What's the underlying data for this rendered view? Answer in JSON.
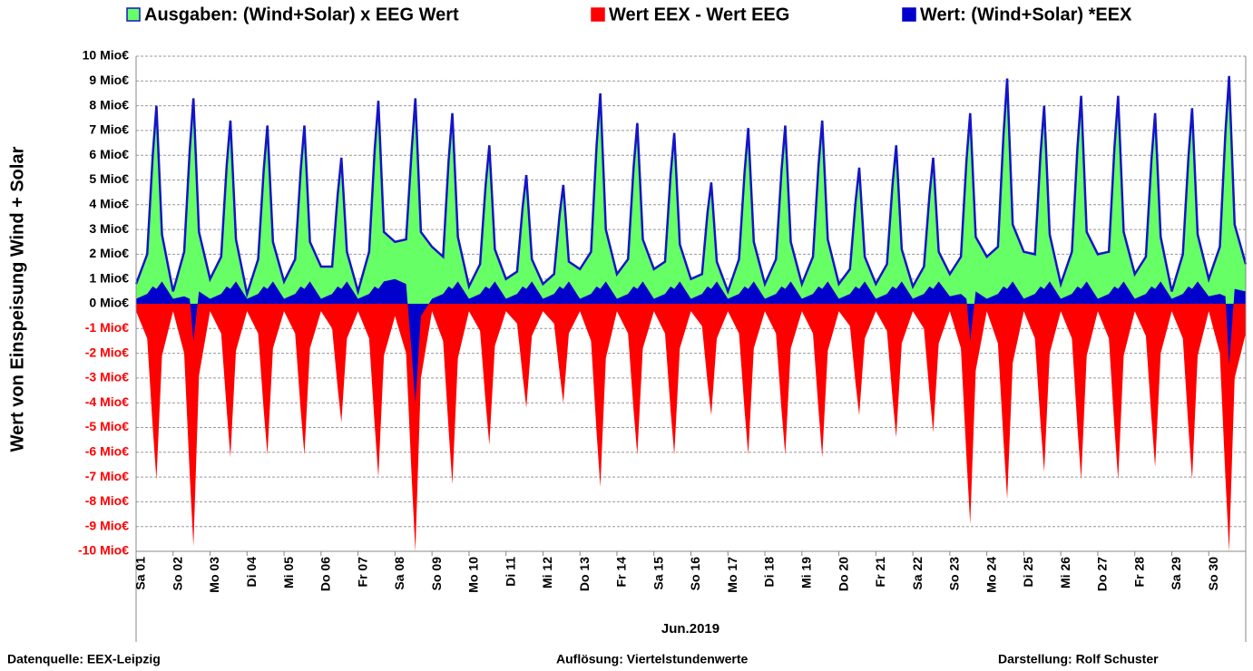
{
  "chart_data": {
    "type": "area",
    "y_label": "Wert von Einspeisung Wind + Solar",
    "x_label": "Jun.2019",
    "notes": [
      "Datenquelle:  EEX-Leipzig",
      "Auflösung: Viertelstundenwerte",
      "Darstellung: Rolf Schuster"
    ],
    "grid": true,
    "outline_color": "#1414c8",
    "negative_tick_color": "#ff0000",
    "xlim": [
      0,
      30
    ],
    "ylim": [
      -10,
      10
    ],
    "yticks": [
      {
        "value": 10,
        "label": "10 Mio€"
      },
      {
        "value": 9,
        "label": "9 Mio€"
      },
      {
        "value": 8,
        "label": "8 Mio€"
      },
      {
        "value": 7,
        "label": "7 Mio€"
      },
      {
        "value": 6,
        "label": "6 Mio€"
      },
      {
        "value": 5,
        "label": "5 Mio€"
      },
      {
        "value": 4,
        "label": "4 Mio€"
      },
      {
        "value": 3,
        "label": "3 Mio€"
      },
      {
        "value": 2,
        "label": "2 Mio€"
      },
      {
        "value": 1,
        "label": "1 Mio€"
      },
      {
        "value": 0,
        "label": "0 Mio€"
      },
      {
        "value": -1,
        "label": "-1 Mio€"
      },
      {
        "value": -2,
        "label": "-2 Mio€"
      },
      {
        "value": -3,
        "label": "-3 Mio€"
      },
      {
        "value": -4,
        "label": "-4 Mio€"
      },
      {
        "value": -5,
        "label": "-5 Mio€"
      },
      {
        "value": -6,
        "label": "-6 Mio€"
      },
      {
        "value": -7,
        "label": "-7 Mio€"
      },
      {
        "value": -8,
        "label": "-8 Mio€"
      },
      {
        "value": -9,
        "label": "-9 Mio€"
      },
      {
        "value": -10,
        "label": "-10 Mio€"
      }
    ],
    "xticks": [
      {
        "value": 0,
        "label": "Sa 01"
      },
      {
        "value": 1,
        "label": "So 02"
      },
      {
        "value": 2,
        "label": "Mo 03"
      },
      {
        "value": 3,
        "label": "Di 04"
      },
      {
        "value": 4,
        "label": "Mi 05"
      },
      {
        "value": 5,
        "label": "Do 06"
      },
      {
        "value": 6,
        "label": "Fr 07"
      },
      {
        "value": 7,
        "label": "Sa 08"
      },
      {
        "value": 8,
        "label": "So 09"
      },
      {
        "value": 9,
        "label": "Mo 10"
      },
      {
        "value": 10,
        "label": "Di 11"
      },
      {
        "value": 11,
        "label": "Mi 12"
      },
      {
        "value": 12,
        "label": "Do 13"
      },
      {
        "value": 13,
        "label": "Fr 14"
      },
      {
        "value": 14,
        "label": "Sa 15"
      },
      {
        "value": 15,
        "label": "So 16"
      },
      {
        "value": 16,
        "label": "Mo 17"
      },
      {
        "value": 17,
        "label": "Di 18"
      },
      {
        "value": 18,
        "label": "Mi 19"
      },
      {
        "value": 19,
        "label": "Do 20"
      },
      {
        "value": 20,
        "label": "Fr 21"
      },
      {
        "value": 21,
        "label": "Sa 22"
      },
      {
        "value": 22,
        "label": "So 23"
      },
      {
        "value": 23,
        "label": "Mo 24"
      },
      {
        "value": 24,
        "label": "Di 25"
      },
      {
        "value": 25,
        "label": "Mi 26"
      },
      {
        "value": 26,
        "label": "Do 27"
      },
      {
        "value": 27,
        "label": "Fr 28"
      },
      {
        "value": 28,
        "label": "Sa 29"
      },
      {
        "value": 29,
        "label": "So 30"
      }
    ],
    "x": [
      0,
      0.3,
      0.45,
      0.55,
      0.7,
      1,
      1.3,
      1.45,
      1.55,
      1.7,
      2,
      2.3,
      2.45,
      2.55,
      2.7,
      3,
      3.3,
      3.45,
      3.55,
      3.7,
      4,
      4.3,
      4.45,
      4.55,
      4.7,
      5,
      5.3,
      5.45,
      5.55,
      5.7,
      6,
      6.3,
      6.45,
      6.55,
      6.7,
      7,
      7.3,
      7.45,
      7.55,
      7.7,
      8,
      8.3,
      8.45,
      8.55,
      8.7,
      9,
      9.3,
      9.45,
      9.55,
      9.7,
      10,
      10.3,
      10.45,
      10.55,
      10.7,
      11,
      11.3,
      11.45,
      11.55,
      11.7,
      12,
      12.3,
      12.45,
      12.55,
      12.7,
      13,
      13.3,
      13.45,
      13.55,
      13.7,
      14,
      14.3,
      14.45,
      14.55,
      14.7,
      15,
      15.3,
      15.45,
      15.55,
      15.7,
      16,
      16.3,
      16.45,
      16.55,
      16.7,
      17,
      17.3,
      17.45,
      17.55,
      17.7,
      18,
      18.3,
      18.45,
      18.55,
      18.7,
      19,
      19.3,
      19.45,
      19.55,
      19.7,
      20,
      20.3,
      20.45,
      20.55,
      20.7,
      21,
      21.3,
      21.45,
      21.55,
      21.7,
      22,
      22.3,
      22.45,
      22.55,
      22.7,
      23,
      23.3,
      23.45,
      23.55,
      23.7,
      24,
      24.3,
      24.45,
      24.55,
      24.7,
      25,
      25.3,
      25.45,
      25.55,
      25.7,
      26,
      26.3,
      26.45,
      26.55,
      26.7,
      27,
      27.3,
      27.45,
      27.55,
      27.7,
      28,
      28.3,
      28.45,
      28.55,
      28.7,
      29,
      29.3,
      29.45,
      29.55,
      29.7,
      30
    ],
    "series": [
      {
        "name": "Ausgaben: (Wind+Solar) x EEG Wert",
        "color": "#66ff66",
        "values": [
          0.8,
          2.0,
          6.0,
          8.0,
          2.8,
          0.5,
          2.1,
          6.2,
          8.3,
          2.9,
          1.0,
          1.9,
          5.6,
          7.4,
          2.6,
          0.4,
          1.8,
          5.4,
          7.2,
          2.5,
          0.9,
          1.8,
          5.4,
          7.2,
          2.5,
          1.5,
          1.5,
          4.4,
          5.9,
          2.1,
          0.5,
          2.1,
          6.2,
          8.2,
          2.9,
          2.5,
          2.6,
          6.2,
          8.3,
          2.9,
          2.3,
          1.9,
          5.8,
          7.7,
          2.7,
          0.7,
          1.6,
          4.8,
          6.4,
          2.2,
          1.0,
          1.3,
          3.9,
          5.2,
          1.8,
          0.8,
          1.2,
          3.6,
          4.8,
          1.7,
          1.4,
          2.1,
          6.4,
          8.5,
          3.0,
          1.2,
          1.8,
          5.5,
          7.3,
          2.6,
          1.4,
          1.7,
          5.2,
          6.9,
          2.4,
          1.0,
          1.2,
          3.7,
          4.9,
          1.7,
          0.5,
          1.8,
          5.3,
          7.1,
          2.5,
          0.8,
          1.8,
          5.4,
          7.2,
          2.5,
          0.8,
          1.9,
          5.6,
          7.4,
          2.6,
          0.8,
          1.4,
          4.1,
          5.5,
          1.9,
          0.8,
          1.6,
          4.8,
          6.4,
          2.2,
          0.7,
          1.5,
          4.4,
          5.9,
          2.1,
          1.2,
          1.9,
          5.8,
          7.7,
          2.7,
          1.9,
          2.3,
          6.8,
          9.1,
          3.2,
          2.1,
          2.0,
          6.0,
          8.0,
          2.8,
          0.8,
          2.1,
          6.3,
          8.4,
          2.9,
          2.0,
          2.1,
          6.3,
          8.4,
          2.9,
          1.2,
          1.9,
          5.8,
          7.7,
          2.7,
          0.5,
          2.0,
          5.9,
          7.9,
          2.8,
          1.0,
          2.3,
          6.9,
          9.2,
          3.2,
          1.6
        ]
      },
      {
        "name": "Wert EEX - Wert EEG",
        "color": "#ff0000",
        "values": [
          -0.3,
          -1.4,
          -5.0,
          -7.1,
          -2.1,
          -0.3,
          -2.0,
          -6.9,
          -9.8,
          -2.9,
          -0.3,
          -1.2,
          -4.3,
          -6.2,
          -1.9,
          -0.3,
          -1.2,
          -4.3,
          -6.1,
          -1.8,
          -0.3,
          -1.2,
          -4.3,
          -6.1,
          -1.8,
          -0.3,
          -1.0,
          -3.4,
          -4.8,
          -1.4,
          -0.3,
          -1.4,
          -4.9,
          -7.0,
          -2.1,
          -0.5,
          -2.0,
          -7.0,
          -10,
          -3.0,
          -0.3,
          -1.5,
          -5.1,
          -7.3,
          -2.2,
          -0.3,
          -1.1,
          -4.0,
          -5.7,
          -1.7,
          -0.3,
          -0.8,
          -2.9,
          -4.2,
          -1.3,
          -0.3,
          -0.8,
          -2.8,
          -4.0,
          -1.2,
          -0.3,
          -1.5,
          -5.2,
          -7.4,
          -2.2,
          -0.3,
          -1.2,
          -4.3,
          -6.1,
          -1.8,
          -0.3,
          -1.2,
          -4.3,
          -6.1,
          -1.8,
          -0.3,
          -0.9,
          -3.2,
          -4.5,
          -1.4,
          -0.3,
          -1.2,
          -4.3,
          -6.1,
          -1.8,
          -0.3,
          -1.2,
          -4.3,
          -6.1,
          -1.8,
          -0.3,
          -1.2,
          -4.3,
          -6.2,
          -1.9,
          -0.3,
          -0.9,
          -3.2,
          -4.5,
          -1.4,
          -0.3,
          -1.1,
          -3.8,
          -5.4,
          -1.6,
          -0.3,
          -1.0,
          -3.6,
          -5.2,
          -1.6,
          -0.3,
          -1.8,
          -6.2,
          -8.9,
          -2.7,
          -0.3,
          -1.6,
          -5.5,
          -7.9,
          -2.4,
          -0.3,
          -1.4,
          -4.8,
          -6.8,
          -2.0,
          -0.3,
          -1.4,
          -5.0,
          -7.1,
          -2.1,
          -0.3,
          -1.4,
          -5.0,
          -7.1,
          -2.1,
          -0.3,
          -1.3,
          -4.6,
          -6.6,
          -2.0,
          -0.3,
          -1.4,
          -5.0,
          -7.1,
          -2.1,
          -0.3,
          -2.0,
          -7.0,
          -10,
          -3.0,
          -1.2
        ]
      },
      {
        "name": "Wert: (Wind+Solar) *EEX",
        "color": "#0000cc",
        "values": [
          0.2,
          0.4,
          0.7,
          0.6,
          0.9,
          0.2,
          0.3,
          0.2,
          -1.5,
          0.5,
          0.2,
          0.4,
          0.7,
          0.6,
          0.9,
          0.2,
          0.4,
          0.7,
          0.6,
          0.9,
          0.2,
          0.4,
          0.7,
          0.6,
          0.9,
          0.2,
          0.4,
          0.7,
          0.6,
          0.9,
          0.2,
          0.4,
          0.7,
          0.6,
          0.9,
          1.0,
          0.8,
          -2.0,
          -4.0,
          -0.5,
          0.2,
          0.4,
          0.7,
          0.6,
          0.9,
          0.2,
          0.4,
          0.7,
          0.6,
          0.9,
          0.2,
          0.4,
          0.7,
          0.6,
          0.9,
          0.2,
          0.4,
          0.7,
          0.6,
          0.9,
          0.2,
          0.4,
          0.7,
          0.6,
          0.9,
          0.2,
          0.4,
          0.7,
          0.6,
          0.9,
          0.2,
          0.4,
          0.7,
          0.6,
          0.9,
          0.2,
          0.4,
          0.7,
          0.6,
          0.9,
          0.2,
          0.4,
          0.7,
          0.6,
          0.9,
          0.2,
          0.4,
          0.7,
          0.6,
          0.9,
          0.2,
          0.4,
          0.7,
          0.6,
          0.9,
          0.2,
          0.4,
          0.7,
          0.6,
          0.9,
          0.2,
          0.4,
          0.7,
          0.6,
          0.9,
          0.2,
          0.4,
          0.7,
          0.6,
          0.9,
          0.3,
          0.4,
          0.2,
          -1.5,
          0.5,
          0.2,
          0.4,
          0.7,
          0.6,
          0.9,
          0.2,
          0.4,
          0.7,
          0.6,
          0.9,
          0.2,
          0.4,
          0.7,
          0.6,
          0.9,
          0.2,
          0.4,
          0.7,
          0.6,
          0.9,
          0.2,
          0.4,
          0.7,
          0.6,
          0.9,
          0.2,
          0.4,
          0.7,
          0.6,
          0.9,
          0.3,
          0.4,
          0.3,
          -2.5,
          0.6,
          0.5
        ]
      }
    ]
  }
}
